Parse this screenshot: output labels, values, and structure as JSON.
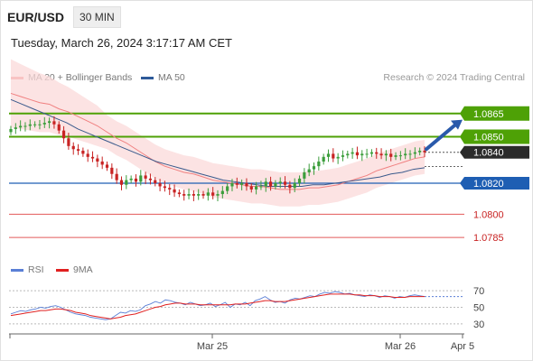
{
  "header": {
    "symbol": "EURUSD",
    "symbol_display": "EUR/USD",
    "timeframe": "30 MIN"
  },
  "timestamp": "Tuesday, March 26, 2024 3:17:17 AM CET",
  "legend": {
    "ma_label": "MA 20 + Bollinger Bands",
    "ma50_label": "MA 50"
  },
  "credit": "Research © 2024 Trading Central",
  "rsi_legend": {
    "rsi_label": "RSI",
    "ma_label": "9MA"
  },
  "colors": {
    "resistance": "#4ea106",
    "support": "#1e5eb3",
    "support_lite": "#e25a5a",
    "ma20": "#f08080",
    "ma50": "#3a5a8c",
    "rsi": "#5a7fd6",
    "rsi_ma": "#e02020",
    "up": "#3c9e3c",
    "down": "#c82323",
    "band": "#fbd9da"
  },
  "chart_data": [
    {
      "type": "line",
      "title": "EUR/USD 30 MIN",
      "ylim": [
        1.0774,
        1.0887
      ],
      "x_ticks": [
        "Mar 25",
        "Mar 26",
        "Apr 5"
      ],
      "levels": [
        {
          "value": 1.0865,
          "label": "1.0865",
          "kind": "resistance"
        },
        {
          "value": 1.085,
          "label": "1.0850",
          "kind": "resistance"
        },
        {
          "value": 1.084,
          "label": "1.0840",
          "kind": "last"
        },
        {
          "value": 1.082,
          "label": "1.0820",
          "kind": "support"
        },
        {
          "value": 1.08,
          "label": "1.0800",
          "kind": "support-lite"
        },
        {
          "value": 1.0785,
          "label": "1.0785",
          "kind": "support-lite"
        }
      ],
      "close": [
        1.0855,
        1.0856,
        1.0857,
        1.0857,
        1.0858,
        1.0858,
        1.0858,
        1.0859,
        1.086,
        1.0858,
        1.0854,
        1.0849,
        1.0844,
        1.0842,
        1.0841,
        1.0839,
        1.0837,
        1.0836,
        1.0834,
        1.0832,
        1.083,
        1.0826,
        1.0822,
        1.0819,
        1.0822,
        1.0823,
        1.0821,
        1.0825,
        1.0823,
        1.0822,
        1.082,
        1.0818,
        1.0817,
        1.0816,
        1.0814,
        1.0813,
        1.0812,
        1.0813,
        1.0812,
        1.0813,
        1.0812,
        1.0814,
        1.0812,
        1.0813,
        1.0815,
        1.0818,
        1.082,
        1.0819,
        1.082,
        1.0818,
        1.0816,
        1.0818,
        1.0818,
        1.0821,
        1.0818,
        1.082,
        1.0821,
        1.0819,
        1.0817,
        1.082,
        1.0823,
        1.0827,
        1.0829,
        1.0831,
        1.0834,
        1.0837,
        1.0839,
        1.0836,
        1.0837,
        1.0838,
        1.0839,
        1.084,
        1.0838,
        1.0839,
        1.0839,
        1.084,
        1.0839,
        1.0838,
        1.0839,
        1.0837,
        1.0838,
        1.0838,
        1.0839,
        1.0839,
        1.084,
        1.0841,
        1.084
      ],
      "ma20": [
        1.0878,
        1.0876,
        1.0874,
        1.0872,
        1.0871,
        1.0868,
        1.0866,
        1.0863,
        1.086,
        1.0857,
        1.0853,
        1.0849,
        1.0846,
        1.0842,
        1.0838,
        1.0834,
        1.0831,
        1.0829,
        1.0827,
        1.0826,
        1.0824,
        1.0822,
        1.0821,
        1.082,
        1.0819,
        1.0818,
        1.0818,
        1.0817,
        1.0816,
        1.0816,
        1.0816,
        1.0817,
        1.0817,
        1.0818,
        1.0819,
        1.0821,
        1.0823,
        1.0825,
        1.0828,
        1.083,
        1.0832,
        1.0834,
        1.0836,
        1.0837
      ],
      "ma50": [
        1.0874,
        1.0871,
        1.0868,
        1.0865,
        1.0862,
        1.0859,
        1.0855,
        1.0852,
        1.0849,
        1.0846,
        1.0843,
        1.084,
        1.0837,
        1.0834,
        1.0832,
        1.083,
        1.0828,
        1.0826,
        1.0824,
        1.0822,
        1.0821,
        1.082,
        1.0819,
        1.0818,
        1.0818,
        1.0818,
        1.0818,
        1.0819,
        1.0819,
        1.082,
        1.0821,
        1.0822,
        1.0823,
        1.0824,
        1.0826,
        1.0827,
        1.0829,
        1.083
      ],
      "projection": {
        "from": 1.0842,
        "to": 1.0861
      }
    },
    {
      "type": "line",
      "title": "RSI",
      "ylim": [
        20,
        80
      ],
      "y_ticks": [
        30,
        50,
        70
      ],
      "rsi": [
        42,
        44,
        46,
        45,
        47,
        48,
        50,
        49,
        51,
        52,
        50,
        47,
        44,
        42,
        41,
        40,
        38,
        37,
        36,
        35,
        36,
        40,
        44,
        43,
        46,
        45,
        47,
        52,
        54,
        57,
        55,
        59,
        58,
        56,
        55,
        53,
        56,
        54,
        52,
        53,
        55,
        51,
        53,
        56,
        50,
        54,
        53,
        56,
        52,
        58,
        60,
        63,
        59,
        56,
        57,
        55,
        59,
        61,
        60,
        62,
        64,
        63,
        66,
        68,
        67,
        69,
        68,
        66,
        67,
        65,
        64,
        63,
        65,
        64,
        62,
        64,
        63,
        61,
        63,
        62,
        64,
        65,
        64,
        63
      ],
      "rsi_ma": [
        40,
        41,
        42,
        43,
        44,
        45,
        46,
        46,
        47,
        48,
        48,
        47,
        46,
        44,
        43,
        42,
        40,
        39,
        38,
        37,
        36,
        37,
        38,
        40,
        41,
        42,
        44,
        46,
        48,
        50,
        51,
        53,
        54,
        55,
        55,
        54,
        54,
        54,
        53,
        53,
        53,
        53,
        53,
        53,
        53,
        54,
        54,
        54,
        55,
        56,
        57,
        58,
        58,
        57,
        57,
        57,
        58,
        59,
        60,
        61,
        62,
        63,
        64,
        65,
        66,
        66,
        66,
        66,
        66,
        65,
        65,
        64,
        64,
        64,
        63,
        63,
        63,
        62,
        62,
        62,
        63,
        63,
        63,
        63
      ]
    }
  ]
}
